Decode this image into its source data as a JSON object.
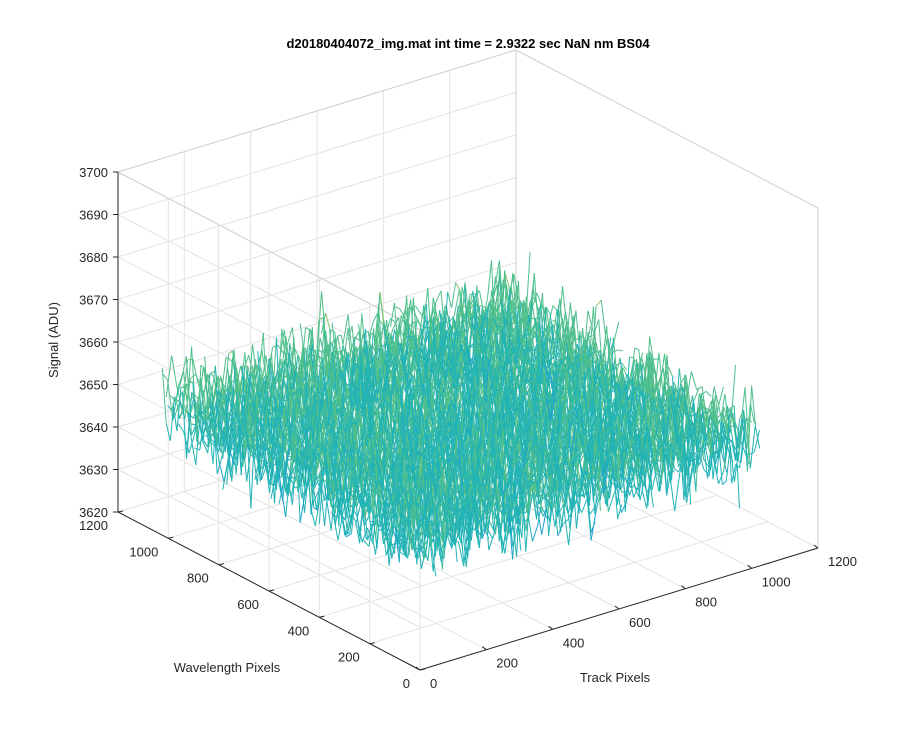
{
  "figure": {
    "title": "d20180404072_img.mat int time = 2.9322 sec  NaN nm BS04"
  },
  "chart_data": {
    "type": "surface",
    "title": "d20180404072_img.mat int time = 2.9322 sec  NaN nm BS04",
    "xlabel": "Track Pixels",
    "ylabel": "Wavelength Pixels",
    "zlabel": "Signal (ADU)",
    "xlim": [
      0,
      1200
    ],
    "ylim": [
      0,
      1200
    ],
    "zlim": [
      3620,
      3700
    ],
    "xticks": [
      0,
      200,
      400,
      600,
      800,
      1000,
      1200
    ],
    "yticks": [
      0,
      200,
      400,
      600,
      800,
      1000,
      1200
    ],
    "zticks": [
      3620,
      3630,
      3640,
      3650,
      3660,
      3670,
      3680,
      3690,
      3700
    ],
    "data_extent": {
      "x": [
        0,
        1024
      ],
      "y": [
        0,
        1024
      ]
    },
    "signal_mean": 3650,
    "signal_range_visible": [
      3622,
      3688
    ],
    "grid": true,
    "colormap": [
      "#0072BD",
      "#1f9fd3",
      "#22b3b6",
      "#4fbf8c",
      "#8cc46a",
      "#c8c04a",
      "#f2b93a"
    ]
  }
}
